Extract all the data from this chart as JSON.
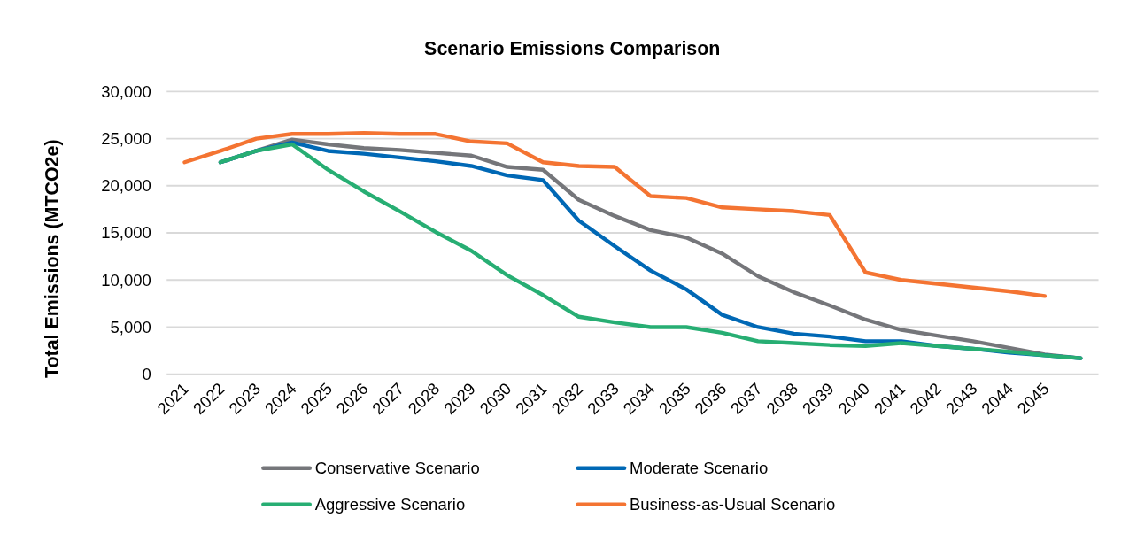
{
  "chart_data": {
    "type": "line",
    "title": "Scenario Emissions Comparison",
    "ylabel": "Total Emissions (MTCO2e)",
    "categories": [
      "2021",
      "2022",
      "2023",
      "2024",
      "2025",
      "2026",
      "2027",
      "2028",
      "2029",
      "2030",
      "2031",
      "2032",
      "2033",
      "2034",
      "2035",
      "2036",
      "2037",
      "2038",
      "2039",
      "2040",
      "2041",
      "2042",
      "2043",
      "2044",
      "2045",
      null
    ],
    "series": [
      {
        "name": "Conservative Scenario",
        "color": "#75767a",
        "values": [
          null,
          22500,
          23700,
          24900,
          24400,
          24000,
          23800,
          23500,
          23200,
          22000,
          21700,
          18500,
          16800,
          15300,
          14500,
          12800,
          10400,
          8700,
          7300,
          5800,
          4700,
          4100,
          3500,
          2800,
          2100,
          1700
        ]
      },
      {
        "name": "Moderate Scenario",
        "color": "#0068b5",
        "values": [
          null,
          22500,
          23700,
          24600,
          23700,
          23400,
          23000,
          22600,
          22100,
          21100,
          20600,
          16300,
          13600,
          11000,
          9000,
          6300,
          5000,
          4300,
          4000,
          3500,
          3500,
          3000,
          2700,
          2300,
          2000,
          1700
        ]
      },
      {
        "name": "Aggressive Scenario",
        "color": "#27ae73",
        "values": [
          null,
          22500,
          23700,
          24400,
          21700,
          19400,
          17300,
          15100,
          13100,
          10500,
          8400,
          6100,
          5500,
          5000,
          5000,
          4400,
          3500,
          3300,
          3100,
          3000,
          3300,
          3000,
          2700,
          2400,
          2000,
          1700
        ]
      },
      {
        "name": "Business-as-Usual Scenario",
        "color": "#f47432",
        "values": [
          22500,
          23700,
          25000,
          25500,
          25500,
          25600,
          25500,
          25500,
          24700,
          24500,
          22500,
          22100,
          22000,
          18900,
          18700,
          17700,
          17500,
          17300,
          16900,
          10800,
          10000,
          9600,
          9200,
          8800,
          8300,
          null
        ]
      }
    ],
    "ylim": [
      0,
      30000
    ],
    "yticks": [
      {
        "value": 0,
        "label": "0"
      },
      {
        "value": 5000,
        "label": "5,000"
      },
      {
        "value": 10000,
        "label": "10,000"
      },
      {
        "value": 15000,
        "label": "15,000"
      },
      {
        "value": 20000,
        "label": "20,000"
      },
      {
        "value": 25000,
        "label": "25,000"
      },
      {
        "value": 30000,
        "label": "30,000"
      }
    ],
    "grid": "y",
    "legend": "bottom",
    "marker": "none",
    "line_style": "solid"
  }
}
